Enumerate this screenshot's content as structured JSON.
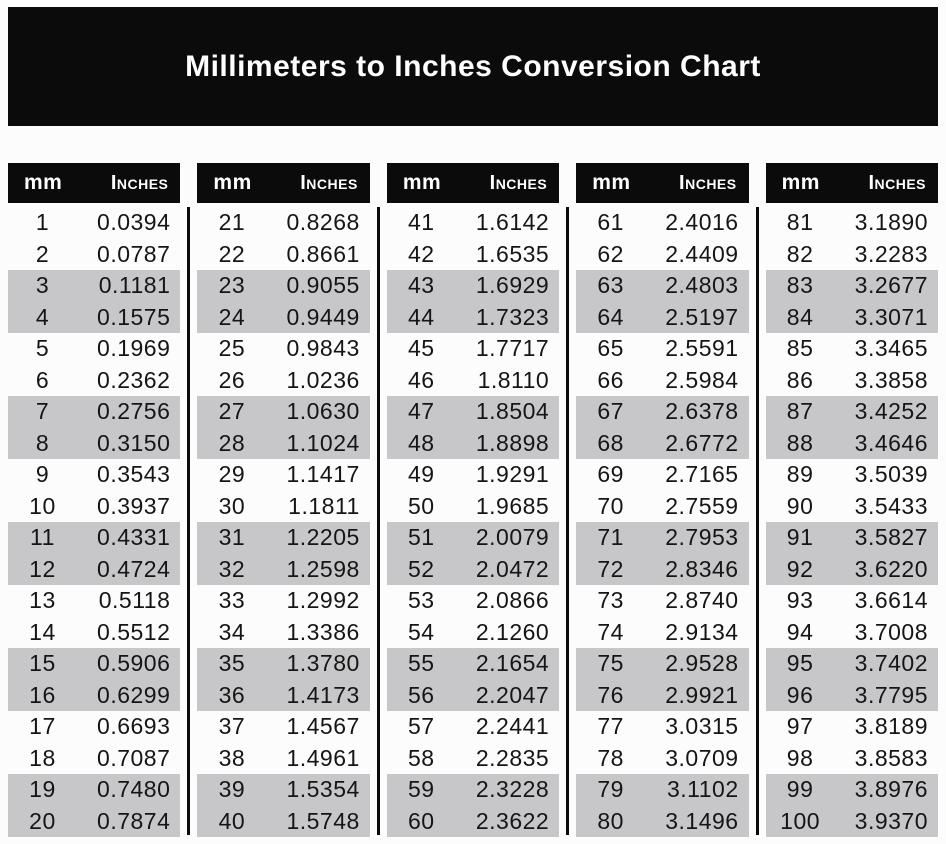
{
  "title": "Millimeters to Inches Conversion Chart",
  "colors": {
    "banner_bg": "#0b0b0b",
    "band_bg": "#c7c7c9",
    "header_text": "#ffffff",
    "body_text": "#151515",
    "page_bg": "#fcfcfc"
  },
  "chart_data": {
    "type": "table",
    "title": "Millimeters to Inches Conversion Chart",
    "column_headers": [
      "mm",
      "Inches"
    ],
    "layout": {
      "group_count": 5,
      "rows_per_group": 20,
      "row_banding": "pairs of two rows alternate white and gray, starting white",
      "dividers": "vertical black rules between groups"
    },
    "groups": [
      [
        [
          "1",
          "0.0394"
        ],
        [
          "2",
          "0.0787"
        ],
        [
          "3",
          "0.1181"
        ],
        [
          "4",
          "0.1575"
        ],
        [
          "5",
          "0.1969"
        ],
        [
          "6",
          "0.2362"
        ],
        [
          "7",
          "0.2756"
        ],
        [
          "8",
          "0.3150"
        ],
        [
          "9",
          "0.3543"
        ],
        [
          "10",
          "0.3937"
        ],
        [
          "11",
          "0.4331"
        ],
        [
          "12",
          "0.4724"
        ],
        [
          "13",
          "0.5118"
        ],
        [
          "14",
          "0.5512"
        ],
        [
          "15",
          "0.5906"
        ],
        [
          "16",
          "0.6299"
        ],
        [
          "17",
          "0.6693"
        ],
        [
          "18",
          "0.7087"
        ],
        [
          "19",
          "0.7480"
        ],
        [
          "20",
          "0.7874"
        ]
      ],
      [
        [
          "21",
          "0.8268"
        ],
        [
          "22",
          "0.8661"
        ],
        [
          "23",
          "0.9055"
        ],
        [
          "24",
          "0.9449"
        ],
        [
          "25",
          "0.9843"
        ],
        [
          "26",
          "1.0236"
        ],
        [
          "27",
          "1.0630"
        ],
        [
          "28",
          "1.1024"
        ],
        [
          "29",
          "1.1417"
        ],
        [
          "30",
          "1.1811"
        ],
        [
          "31",
          "1.2205"
        ],
        [
          "32",
          "1.2598"
        ],
        [
          "33",
          "1.2992"
        ],
        [
          "34",
          "1.3386"
        ],
        [
          "35",
          "1.3780"
        ],
        [
          "36",
          "1.4173"
        ],
        [
          "37",
          "1.4567"
        ],
        [
          "38",
          "1.4961"
        ],
        [
          "39",
          "1.5354"
        ],
        [
          "40",
          "1.5748"
        ]
      ],
      [
        [
          "41",
          "1.6142"
        ],
        [
          "42",
          "1.6535"
        ],
        [
          "43",
          "1.6929"
        ],
        [
          "44",
          "1.7323"
        ],
        [
          "45",
          "1.7717"
        ],
        [
          "46",
          "1.8110"
        ],
        [
          "47",
          "1.8504"
        ],
        [
          "48",
          "1.8898"
        ],
        [
          "49",
          "1.9291"
        ],
        [
          "50",
          "1.9685"
        ],
        [
          "51",
          "2.0079"
        ],
        [
          "52",
          "2.0472"
        ],
        [
          "53",
          "2.0866"
        ],
        [
          "54",
          "2.1260"
        ],
        [
          "55",
          "2.1654"
        ],
        [
          "56",
          "2.2047"
        ],
        [
          "57",
          "2.2441"
        ],
        [
          "58",
          "2.2835"
        ],
        [
          "59",
          "2.3228"
        ],
        [
          "60",
          "2.3622"
        ]
      ],
      [
        [
          "61",
          "2.4016"
        ],
        [
          "62",
          "2.4409"
        ],
        [
          "63",
          "2.4803"
        ],
        [
          "64",
          "2.5197"
        ],
        [
          "65",
          "2.5591"
        ],
        [
          "66",
          "2.5984"
        ],
        [
          "67",
          "2.6378"
        ],
        [
          "68",
          "2.6772"
        ],
        [
          "69",
          "2.7165"
        ],
        [
          "70",
          "2.7559"
        ],
        [
          "71",
          "2.7953"
        ],
        [
          "72",
          "2.8346"
        ],
        [
          "73",
          "2.8740"
        ],
        [
          "74",
          "2.9134"
        ],
        [
          "75",
          "2.9528"
        ],
        [
          "76",
          "2.9921"
        ],
        [
          "77",
          "3.0315"
        ],
        [
          "78",
          "3.0709"
        ],
        [
          "79",
          "3.1102"
        ],
        [
          "80",
          "3.1496"
        ]
      ],
      [
        [
          "81",
          "3.1890"
        ],
        [
          "82",
          "3.2283"
        ],
        [
          "83",
          "3.2677"
        ],
        [
          "84",
          "3.3071"
        ],
        [
          "85",
          "3.3465"
        ],
        [
          "86",
          "3.3858"
        ],
        [
          "87",
          "3.4252"
        ],
        [
          "88",
          "3.4646"
        ],
        [
          "89",
          "3.5039"
        ],
        [
          "90",
          "3.5433"
        ],
        [
          "91",
          "3.5827"
        ],
        [
          "92",
          "3.6220"
        ],
        [
          "93",
          "3.6614"
        ],
        [
          "94",
          "3.7008"
        ],
        [
          "95",
          "3.7402"
        ],
        [
          "96",
          "3.7795"
        ],
        [
          "97",
          "3.8189"
        ],
        [
          "98",
          "3.8583"
        ],
        [
          "99",
          "3.8976"
        ],
        [
          "100",
          "3.9370"
        ]
      ]
    ]
  }
}
